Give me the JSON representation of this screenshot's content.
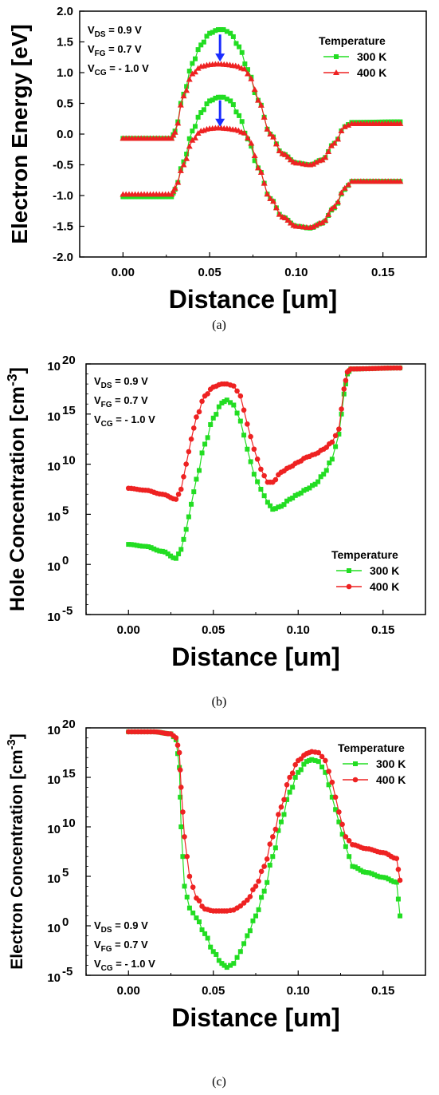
{
  "chart_data": [
    {
      "type": "line",
      "panel": "(a)",
      "xlabel": "Distance [um]",
      "ylabel": "Electron Energy [eV]",
      "xlim": [
        -0.025,
        0.175
      ],
      "ylim": [
        -2.0,
        2.0
      ],
      "xticks": [
        "0.00",
        "0.05",
        "0.10",
        "0.15"
      ],
      "yticks": [
        "2.0",
        "1.5",
        "1.0",
        "0.5",
        "0.0",
        "-0.5",
        "-1.0",
        "-1.5",
        "-2.0"
      ],
      "conditions": [
        "VDS = 0.9 V",
        "VFG = 0.7 V",
        "VCG = - 1.0 V"
      ],
      "legend_title": "Temperature",
      "legend_position": "top-right",
      "annotation": "blue downward arrows at x = 0.056 indicating barrier lowering from 300 K to 400 K",
      "series": [
        {
          "name": "300 K",
          "color": "#22dd22",
          "marker": "square",
          "x": [
            0.0,
            0.028,
            0.03,
            0.035,
            0.04,
            0.045,
            0.05,
            0.055,
            0.058,
            0.062,
            0.067,
            0.072,
            0.078,
            0.085,
            0.092,
            0.1,
            0.108,
            0.115,
            0.122,
            0.128,
            0.132,
            0.16
          ],
          "y": [
            -0.07,
            -0.07,
            0.05,
            0.65,
            1.15,
            1.45,
            1.64,
            1.7,
            1.7,
            1.64,
            1.42,
            1.05,
            0.55,
            0.0,
            -0.32,
            -0.47,
            -0.5,
            -0.42,
            -0.15,
            0.12,
            0.19,
            0.2
          ]
        },
        {
          "name": "400 K",
          "color": "#ee2222",
          "marker": "triangle",
          "x": [
            0.0,
            0.028,
            0.03,
            0.035,
            0.04,
            0.045,
            0.05,
            0.055,
            0.06,
            0.065,
            0.07,
            0.074,
            0.078,
            0.085,
            0.092,
            0.1,
            0.108,
            0.115,
            0.122,
            0.128,
            0.132,
            0.16
          ],
          "y": [
            -0.07,
            -0.07,
            0.03,
            0.62,
            0.98,
            1.1,
            1.13,
            1.14,
            1.13,
            1.11,
            1.06,
            0.9,
            0.55,
            0.0,
            -0.32,
            -0.47,
            -0.5,
            -0.42,
            -0.15,
            0.12,
            0.17,
            0.17
          ]
        },
        {
          "name": "300 K",
          "color": "#22dd22",
          "marker": "square",
          "x": [
            0.0,
            0.028,
            0.03,
            0.035,
            0.04,
            0.045,
            0.05,
            0.055,
            0.058,
            0.062,
            0.067,
            0.072,
            0.078,
            0.085,
            0.092,
            0.1,
            0.108,
            0.115,
            0.122,
            0.128,
            0.132,
            0.16
          ],
          "y": [
            -1.02,
            -1.02,
            -0.9,
            -0.45,
            0.05,
            0.35,
            0.54,
            0.6,
            0.6,
            0.54,
            0.3,
            -0.08,
            -0.55,
            -1.05,
            -1.35,
            -1.5,
            -1.53,
            -1.45,
            -1.2,
            -0.9,
            -0.77,
            -0.77
          ]
        },
        {
          "name": "400 K",
          "color": "#ee2222",
          "marker": "triangle",
          "x": [
            0.0,
            0.028,
            0.03,
            0.035,
            0.04,
            0.045,
            0.05,
            0.055,
            0.06,
            0.065,
            0.07,
            0.074,
            0.078,
            0.085,
            0.092,
            0.1,
            0.108,
            0.115,
            0.122,
            0.128,
            0.132,
            0.16
          ],
          "y": [
            -0.98,
            -0.98,
            -0.88,
            -0.5,
            -0.1,
            0.05,
            0.09,
            0.1,
            0.09,
            0.07,
            0.02,
            -0.15,
            -0.55,
            -1.05,
            -1.35,
            -1.5,
            -1.52,
            -1.44,
            -1.18,
            -0.88,
            -0.77,
            -0.77
          ]
        }
      ]
    },
    {
      "type": "line",
      "panel": "(b)",
      "xlabel": "Distance [um]",
      "ylabel": "Hole Concentration [cm-3]",
      "ylabel_main": "Hole Concentration [cm",
      "ylabel_sup": "-3",
      "ylabel_close": "]",
      "xlim": [
        -0.025,
        0.175
      ],
      "ylog": true,
      "ylim_log10": [
        -5,
        20
      ],
      "xticks": [
        "0.00",
        "0.05",
        "0.10",
        "0.15"
      ],
      "yticks": [
        {
          "base": "10",
          "exp": "20"
        },
        {
          "base": "10",
          "exp": "15"
        },
        {
          "base": "10",
          "exp": "10"
        },
        {
          "base": "10",
          "exp": "5"
        },
        {
          "base": "10",
          "exp": "0"
        },
        {
          "base": "10",
          "exp": "-5"
        }
      ],
      "conditions": [
        "VDS = 0.9 V",
        "VFG = 0.7 V",
        "VCG = - 1.0 V"
      ],
      "legend_title": "Temperature",
      "legend_position": "bottom-right",
      "series": [
        {
          "name": "300 K",
          "color": "#22dd22",
          "marker": "square",
          "x": [
            0.0,
            0.01,
            0.02,
            0.028,
            0.031,
            0.034,
            0.037,
            0.04,
            0.045,
            0.05,
            0.055,
            0.058,
            0.062,
            0.066,
            0.07,
            0.074,
            0.078,
            0.082,
            0.085,
            0.09,
            0.095,
            0.1,
            0.105,
            0.11,
            0.115,
            0.12,
            0.124,
            0.127,
            0.129,
            0.131,
            0.16
          ],
          "log10y": [
            2.0,
            1.8,
            1.3,
            0.6,
            1.5,
            3.5,
            6.0,
            8.5,
            12.0,
            14.6,
            16.1,
            16.4,
            15.9,
            14.3,
            11.5,
            9.0,
            7.5,
            6.2,
            5.5,
            5.8,
            6.5,
            7.0,
            7.5,
            8.0,
            9.0,
            10.5,
            13.0,
            17.0,
            19.0,
            19.5,
            19.6
          ]
        },
        {
          "name": "400 K",
          "color": "#ee2222",
          "marker": "circle",
          "x": [
            0.0,
            0.01,
            0.02,
            0.028,
            0.031,
            0.034,
            0.037,
            0.04,
            0.045,
            0.05,
            0.055,
            0.058,
            0.062,
            0.066,
            0.07,
            0.074,
            0.078,
            0.082,
            0.085,
            0.09,
            0.095,
            0.1,
            0.105,
            0.11,
            0.115,
            0.12,
            0.124,
            0.127,
            0.129,
            0.131,
            0.16
          ],
          "log10y": [
            7.6,
            7.4,
            7.0,
            6.5,
            7.5,
            10.0,
            12.5,
            14.7,
            16.8,
            17.7,
            18.0,
            18.0,
            17.8,
            16.8,
            14.0,
            11.5,
            9.5,
            8.2,
            8.2,
            9.2,
            9.7,
            10.2,
            10.7,
            11.0,
            11.5,
            12.2,
            13.5,
            17.5,
            19.2,
            19.5,
            19.6
          ]
        }
      ]
    },
    {
      "type": "line",
      "panel": "(c)",
      "xlabel": "Distance [um]",
      "ylabel": "Electron Concentration [cm-3]",
      "ylabel_main": "Electron Concentration [cm",
      "ylabel_sup": "-3",
      "ylabel_close": "]",
      "xlim": [
        -0.025,
        0.175
      ],
      "ylog": true,
      "ylim_log10": [
        -5,
        20
      ],
      "xticks": [
        "0.00",
        "0.05",
        "0.10",
        "0.15"
      ],
      "yticks": [
        {
          "base": "10",
          "exp": "20"
        },
        {
          "base": "10",
          "exp": "15"
        },
        {
          "base": "10",
          "exp": "10"
        },
        {
          "base": "10",
          "exp": "5"
        },
        {
          "base": "10",
          "exp": "0"
        },
        {
          "base": "10",
          "exp": "-5"
        }
      ],
      "conditions": [
        "VDS = 0.9 V",
        "VFG = 0.7 V",
        "VCG = - 1.0 V"
      ],
      "legend_title": "Temperature",
      "legend_position": "top-right",
      "series": [
        {
          "name": "300 K",
          "color": "#22dd22",
          "marker": "square",
          "x": [
            0.0,
            0.015,
            0.025,
            0.028,
            0.03,
            0.031,
            0.033,
            0.036,
            0.04,
            0.045,
            0.05,
            0.055,
            0.058,
            0.062,
            0.066,
            0.07,
            0.075,
            0.08,
            0.085,
            0.09,
            0.095,
            0.1,
            0.105,
            0.108,
            0.112,
            0.116,
            0.12,
            0.124,
            0.128,
            0.132,
            0.14,
            0.15,
            0.158,
            0.16
          ],
          "log10y": [
            19.6,
            19.6,
            19.4,
            18.8,
            16.0,
            10.0,
            4.0,
            1.8,
            0.8,
            -0.8,
            -2.6,
            -3.8,
            -4.2,
            -3.8,
            -2.6,
            -1.0,
            1.0,
            3.5,
            7.0,
            10.5,
            13.5,
            15.5,
            16.6,
            16.8,
            16.6,
            15.5,
            13.0,
            10.5,
            8.0,
            6.0,
            5.4,
            4.9,
            4.4,
            1.0
          ]
        },
        {
          "name": "400 K",
          "color": "#ee2222",
          "marker": "circle",
          "x": [
            0.0,
            0.015,
            0.025,
            0.028,
            0.03,
            0.031,
            0.033,
            0.036,
            0.04,
            0.045,
            0.05,
            0.055,
            0.058,
            0.062,
            0.066,
            0.07,
            0.075,
            0.08,
            0.085,
            0.09,
            0.095,
            0.1,
            0.105,
            0.108,
            0.112,
            0.116,
            0.12,
            0.124,
            0.128,
            0.132,
            0.14,
            0.15,
            0.158,
            0.16
          ],
          "log10y": [
            19.6,
            19.6,
            19.4,
            19.0,
            17.5,
            14.0,
            9.0,
            5.0,
            2.8,
            1.7,
            1.5,
            1.5,
            1.5,
            1.6,
            2.0,
            2.6,
            4.0,
            6.0,
            9.0,
            12.0,
            15.0,
            16.7,
            17.4,
            17.6,
            17.5,
            16.7,
            14.5,
            11.5,
            9.0,
            8.2,
            7.8,
            7.4,
            6.8,
            4.6
          ]
        }
      ]
    }
  ],
  "captions": [
    "(a)",
    "(b)",
    "(c)"
  ]
}
